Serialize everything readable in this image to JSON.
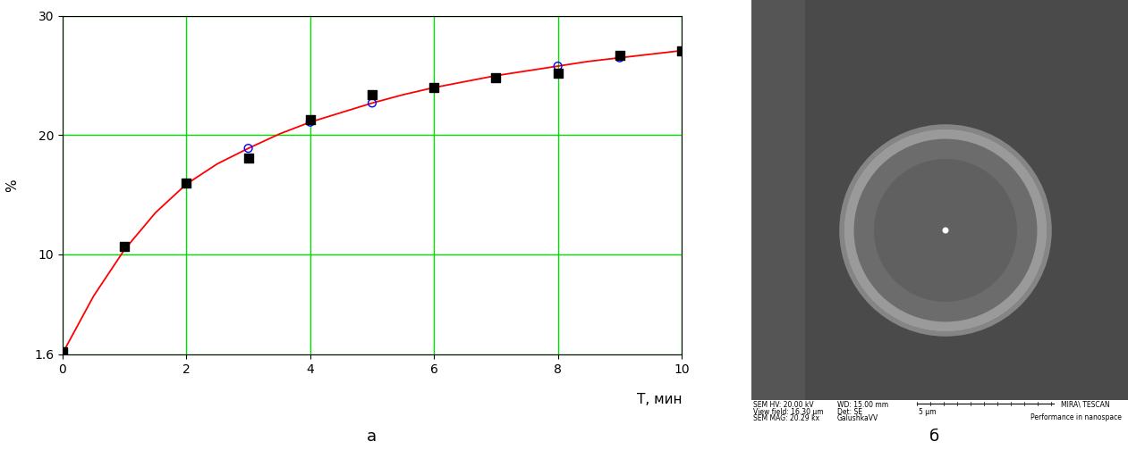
{
  "chart_data": {
    "type": "scatter",
    "panel_label": "а",
    "x_label": "T, мин",
    "y_label": "%",
    "xlim": [
      0,
      10
    ],
    "xticks": [
      0,
      2,
      4,
      6,
      8,
      10
    ],
    "ylim": [
      1.6,
      30
    ],
    "yticks": [
      1.6,
      10,
      20,
      30
    ],
    "grid": true,
    "series": [
      {
        "type": "line",
        "color": "#ff0000",
        "line_style": "solid",
        "x": [
          0,
          0.5,
          1,
          1.5,
          2,
          2.5,
          3,
          3.5,
          4,
          4.5,
          5,
          5.5,
          6,
          6.5,
          7,
          7.5,
          8,
          8.5,
          9,
          9.5,
          10
        ],
        "values": [
          1.7,
          6.5,
          10.4,
          13.5,
          15.9,
          17.6,
          18.9,
          20.1,
          21.1,
          21.9,
          22.7,
          23.4,
          24.0,
          24.5,
          25.0,
          25.4,
          25.8,
          26.2,
          26.5,
          26.8,
          27.1
        ]
      },
      {
        "type": "scatter",
        "color": "#0000ff",
        "marker": "open circle",
        "x": [
          3,
          4,
          5,
          8,
          9
        ],
        "values": [
          18.9,
          21.1,
          22.7,
          25.8,
          26.5
        ]
      },
      {
        "type": "scatter",
        "color": "#000000",
        "marker": "square",
        "x": [
          0,
          1,
          2,
          3,
          4,
          5,
          6,
          7,
          8,
          9,
          10
        ],
        "values": [
          1.8,
          10.7,
          16.0,
          18.1,
          21.3,
          23.4,
          24.0,
          24.8,
          25.2,
          26.7,
          27.1
        ]
      }
    ]
  },
  "image": {
    "panel_label": "б",
    "info": [
      "SEM HV: 20.00 kV",
      "WD: 15.00 mm",
      "View field: 16.30 µm",
      "Det: SE",
      "SEM MAG: 20.29 kx",
      "GalushkaVV"
    ],
    "scale_bar": "5 µm",
    "brand": "MIRA\\ TESCAN",
    "slogan": "Performance in nanospace"
  }
}
